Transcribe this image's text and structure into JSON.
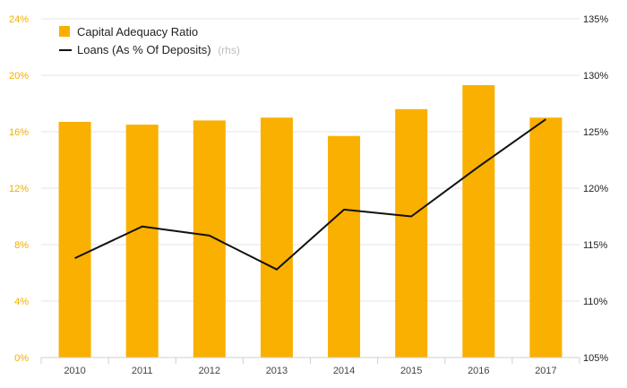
{
  "chart_data": {
    "type": "bar",
    "categories": [
      "2010",
      "2011",
      "2012",
      "2013",
      "2014",
      "2015",
      "2016",
      "2017"
    ],
    "series": [
      {
        "name": "Capital Adequacy Ratio",
        "kind": "bar",
        "axis": "left",
        "color": "#f9b000",
        "values": [
          16.7,
          16.5,
          16.8,
          17.0,
          15.7,
          17.6,
          19.3,
          17.0
        ]
      },
      {
        "name": "Loans (As % Of Deposits)",
        "name_suffix": "(rhs)",
        "kind": "line",
        "axis": "right",
        "color": "#111111",
        "values": [
          113.8,
          116.6,
          115.8,
          112.8,
          118.1,
          117.5,
          121.9,
          126.1
        ]
      }
    ],
    "y_left": {
      "ylim": [
        0,
        24
      ],
      "ticks": [
        0,
        4,
        8,
        12,
        16,
        20,
        24
      ],
      "tick_labels": [
        "0%",
        "4%",
        "8%",
        "12%",
        "16%",
        "20%",
        "24%"
      ],
      "tick_color": "#f2ae00"
    },
    "y_right": {
      "ylim": [
        105,
        135
      ],
      "ticks": [
        105,
        110,
        115,
        120,
        125,
        130,
        135
      ],
      "tick_labels": [
        "105%",
        "110%",
        "115%",
        "120%",
        "125%",
        "130%",
        "135%"
      ]
    },
    "grid": true,
    "legend": "top-left"
  }
}
